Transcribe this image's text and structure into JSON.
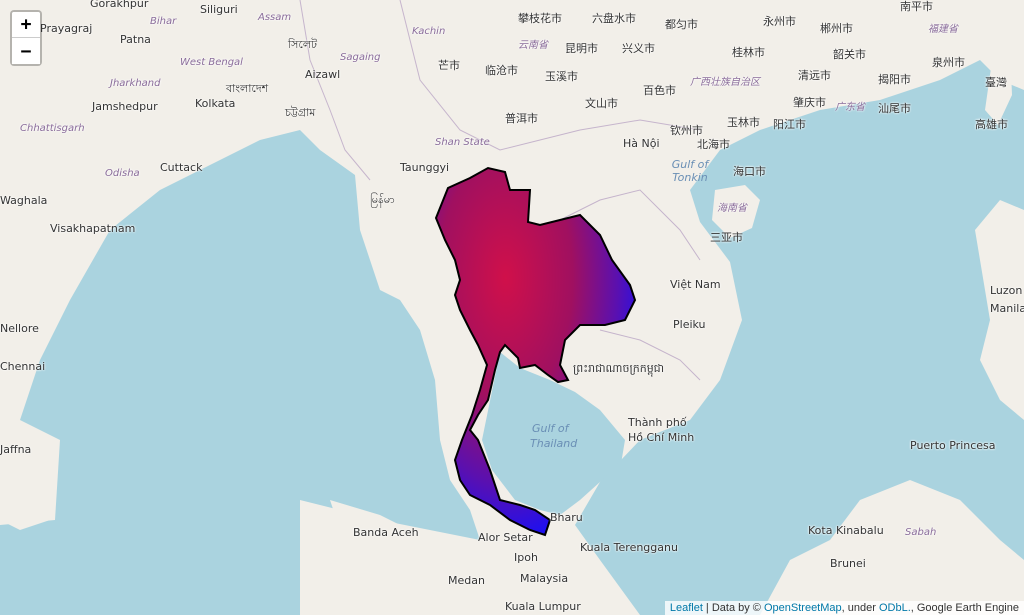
{
  "map": {
    "colors": {
      "sea": "#aad3df",
      "land": "#f2efe9",
      "overlay_high": "#e0103a",
      "overlay_low": "#1010ff",
      "outline": "#000000"
    },
    "overlay_name": "Thailand raster layer",
    "labels": [
      "Gorakhpur",
      "Siliguri",
      "Assam",
      "Bihar",
      "Prayagraj",
      "Patna",
      "সিলেট",
      "West Bengal",
      "Aizawl",
      "Jharkhand",
      "বাংলাদেশ",
      "Kolkata",
      "Jamshedpur",
      "চট্টগ্রাম",
      "Chhattisgarh",
      "Cuttack",
      "Odisha",
      "Waghala",
      "Visakhapatnam",
      "Taunggyi",
      "Shan State",
      "မြန်မာ",
      "攀枝花市",
      "六盘水市",
      "都匀市",
      "永州市",
      "郴州市",
      "南平市",
      "福建省",
      "云南省",
      "昆明市",
      "兴义市",
      "桂林市",
      "韶关市",
      "泉州市",
      "芒市",
      "临沧市",
      "玉溪市",
      "广西壮族自治区",
      "清远市",
      "揭阳市",
      "百色市",
      "肇庆市",
      "广东省",
      "汕尾市",
      "文山市",
      "普洱市",
      "玉林市",
      "阳江市",
      "高雄市",
      "钦州市",
      "北海市",
      "Hà Nội",
      "Gulf of Tonkin",
      "海口市",
      "海南省",
      "三亚市",
      "Việt Nam",
      "Pleiku",
      "ព្រះរាជាណាចក្រកម្ពុជា",
      "Thành phố",
      "Hồ Chí Minh",
      "Gulf of",
      "Thailand",
      "Puerto Princesa",
      "Luzon",
      "Manila",
      "Chennai",
      "Nellore",
      "Jaffna",
      "Banda Aceh",
      "Alor Setar",
      "Bharu",
      "Kuala Terengganu",
      "Ipoh",
      "Medan",
      "Malaysia",
      "Kuala Lumpur",
      "Kota Kinabalu",
      "Sabah",
      "Brunei",
      "臺灣",
      "Kachin",
      "Sagaing",
      "Odisha"
    ]
  },
  "zoom": {
    "in_label": "+",
    "out_label": "−"
  },
  "attribution": {
    "leaflet": "Leaflet",
    "sep": " | Data by © ",
    "osm": "OpenStreetMap",
    "under": ", under ",
    "odbl": "ODbL.",
    "gee": ", Google Earth Engine"
  }
}
